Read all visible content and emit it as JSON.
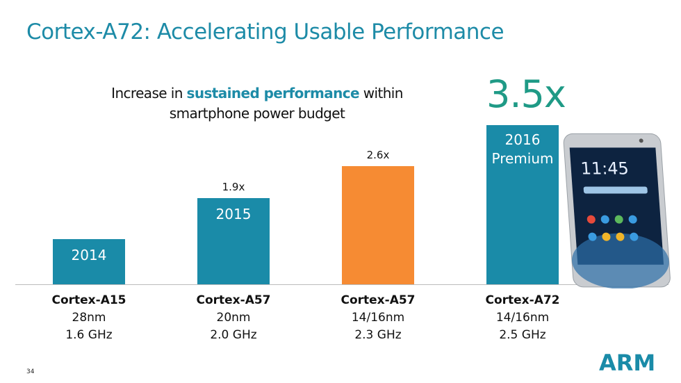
{
  "slide": {
    "title": "Cortex-A72: Accelerating Usable Performance",
    "subtitle_pre": "Increase in ",
    "subtitle_highlight": "sustained performance",
    "subtitle_post": " within smartphone power budget",
    "headline_value": "3.5x",
    "page_number": "34",
    "logo_text": "ARM",
    "phone_clock": "11:45"
  },
  "colors": {
    "title": "#1d8ba7",
    "teal_bar": "#1a8ba8",
    "orange_bar": "#f68b33",
    "headline": "#1f9a86"
  },
  "chart_data": {
    "type": "bar",
    "categories": [
      "Cortex-A15",
      "Cortex-A57",
      "Cortex-A57",
      "Cortex-A72"
    ],
    "process": [
      "28nm",
      "20nm",
      "14/16nm",
      "14/16nm"
    ],
    "frequency": [
      "1.6 GHz",
      "2.0 GHz",
      "2.3 GHz",
      "2.5 GHz"
    ],
    "bar_labels": [
      "2014",
      "2015",
      "",
      "2016 Premium"
    ],
    "value_labels": [
      "",
      "1.9x",
      "2.6x",
      "3.5x"
    ],
    "values": [
      1.0,
      1.9,
      2.6,
      3.5
    ],
    "bar_colors": [
      "#1a8ba8",
      "#1a8ba8",
      "#f68b33",
      "#1a8ba8"
    ],
    "ylim": [
      0,
      3.5
    ],
    "grid": false
  }
}
